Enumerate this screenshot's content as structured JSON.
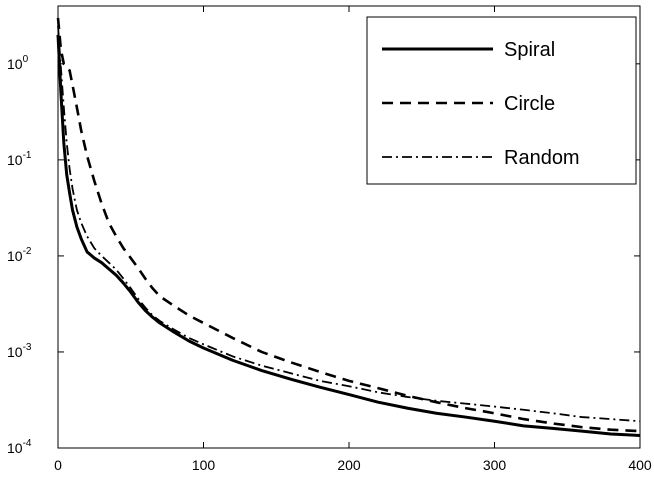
{
  "chart_data": {
    "type": "line",
    "title": "",
    "xlabel": "",
    "ylabel": "",
    "xlim": [
      0,
      400
    ],
    "ylim": [
      0.0001,
      4
    ],
    "yscale": "log",
    "grid": false,
    "legend_position": "top-right",
    "x_ticks": [
      {
        "value": 0,
        "label": "0"
      },
      {
        "value": 100,
        "label": "100"
      },
      {
        "value": 200,
        "label": "200"
      },
      {
        "value": 300,
        "label": "300"
      },
      {
        "value": 400,
        "label": "400"
      }
    ],
    "y_ticks": [
      {
        "value": 1,
        "base": "10",
        "exp": "0"
      },
      {
        "value": 0.1,
        "base": "10",
        "exp": "-1"
      },
      {
        "value": 0.01,
        "base": "10",
        "exp": "-2"
      },
      {
        "value": 0.001,
        "base": "10",
        "exp": "-3"
      },
      {
        "value": 0.0001,
        "base": "10",
        "exp": "-4"
      }
    ],
    "series": [
      {
        "name": "Spiral",
        "style": "solid",
        "color": "#000000",
        "x": [
          0,
          2,
          4,
          6,
          8,
          10,
          13,
          16,
          20,
          25,
          30,
          35,
          40,
          45,
          50,
          55,
          60,
          65,
          70,
          80,
          90,
          100,
          120,
          140,
          160,
          180,
          200,
          220,
          240,
          260,
          280,
          300,
          320,
          340,
          360,
          380,
          400
        ],
        "y": [
          2.0,
          0.5,
          0.15,
          0.07,
          0.045,
          0.03,
          0.02,
          0.015,
          0.011,
          0.0095,
          0.0085,
          0.0073,
          0.0063,
          0.0052,
          0.0042,
          0.0033,
          0.0027,
          0.0023,
          0.002,
          0.0016,
          0.0013,
          0.0011,
          0.00082,
          0.00064,
          0.00052,
          0.00043,
          0.00036,
          0.0003,
          0.00026,
          0.00023,
          0.00021,
          0.00019,
          0.00017,
          0.00016,
          0.00015,
          0.00014,
          0.000135
        ]
      },
      {
        "name": "Circle",
        "style": "dashed",
        "color": "#000000",
        "x": [
          0,
          2,
          4,
          6,
          8,
          10,
          13,
          16,
          20,
          25,
          30,
          35,
          40,
          45,
          50,
          55,
          60,
          65,
          70,
          80,
          90,
          100,
          120,
          140,
          160,
          180,
          200,
          220,
          240,
          260,
          280,
          300,
          320,
          340,
          360,
          380,
          400
        ],
        "y": [
          3.0,
          1.4,
          1.0,
          0.95,
          0.85,
          0.6,
          0.35,
          0.2,
          0.11,
          0.06,
          0.035,
          0.022,
          0.016,
          0.012,
          0.0095,
          0.0075,
          0.0058,
          0.0046,
          0.0038,
          0.003,
          0.0024,
          0.002,
          0.0014,
          0.001,
          0.00078,
          0.00062,
          0.0005,
          0.00042,
          0.00035,
          0.0003,
          0.00026,
          0.00023,
          0.0002,
          0.00018,
          0.000165,
          0.000155,
          0.00015
        ]
      },
      {
        "name": "Random",
        "style": "dash-dot",
        "color": "#000000",
        "x": [
          0,
          2,
          4,
          6,
          8,
          10,
          13,
          16,
          20,
          25,
          30,
          35,
          40,
          45,
          50,
          55,
          60,
          65,
          70,
          80,
          90,
          100,
          120,
          140,
          160,
          180,
          200,
          220,
          240,
          260,
          280,
          300,
          320,
          340,
          360,
          380,
          400
        ],
        "y": [
          2.5,
          0.9,
          0.35,
          0.15,
          0.08,
          0.05,
          0.03,
          0.022,
          0.016,
          0.012,
          0.01,
          0.0085,
          0.0072,
          0.0058,
          0.0046,
          0.0036,
          0.0029,
          0.0024,
          0.0021,
          0.0017,
          0.0014,
          0.0012,
          0.0009,
          0.00072,
          0.0006,
          0.0005,
          0.00044,
          0.00038,
          0.00034,
          0.00031,
          0.00029,
          0.00027,
          0.00025,
          0.00023,
          0.00021,
          0.0002,
          0.00019
        ]
      }
    ]
  }
}
